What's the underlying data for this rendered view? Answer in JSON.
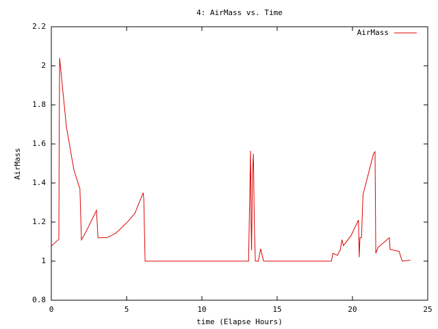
{
  "chart_data": {
    "type": "line",
    "title": "4: AirMass vs. Time",
    "xlabel": "time (Elapse Hours)",
    "ylabel": "AirMass",
    "x": [
      0,
      0.5,
      0.52,
      0.55,
      1.0,
      1.5,
      1.9,
      2.0,
      2.3,
      3.0,
      3.1,
      3.7,
      4.3,
      5.0,
      5.55,
      6.1,
      6.14,
      6.23,
      13.1,
      13.23,
      13.27,
      13.3,
      13.36,
      13.42,
      13.48,
      13.55,
      13.75,
      13.9,
      14.1,
      18.6,
      18.7,
      19.0,
      19.2,
      19.3,
      19.4,
      19.9,
      20.4,
      20.45,
      20.5,
      20.6,
      20.7,
      21.4,
      21.5,
      21.55,
      21.7,
      22.3,
      22.45,
      22.5,
      23.1,
      23.3,
      23.85
    ],
    "series": [
      {
        "name": "AirMass",
        "color": "#dd0000",
        "values": [
          1.077,
          1.112,
          1.58,
          2.04,
          1.688,
          1.467,
          1.37,
          1.109,
          1.15,
          1.26,
          1.12,
          1.12,
          1.144,
          1.196,
          1.245,
          1.35,
          1.32,
          1.0,
          1.0,
          1.565,
          1.18,
          1.056,
          1.45,
          1.55,
          1.2,
          1.0,
          1.0,
          1.063,
          1.0,
          1.0,
          1.04,
          1.03,
          1.06,
          1.11,
          1.08,
          1.13,
          1.21,
          1.02,
          1.12,
          1.12,
          1.34,
          1.55,
          1.56,
          1.04,
          1.07,
          1.11,
          1.12,
          1.06,
          1.05,
          1.0,
          1.005
        ]
      }
    ],
    "xlim": [
      0,
      25
    ],
    "xticks": [
      0,
      5,
      10,
      15,
      20,
      25
    ],
    "ylim": [
      0.8,
      2.2
    ],
    "yticks": [
      0.8,
      1,
      1.2,
      1.4,
      1.6,
      1.8,
      2,
      2.2
    ],
    "legend": "upper right"
  }
}
